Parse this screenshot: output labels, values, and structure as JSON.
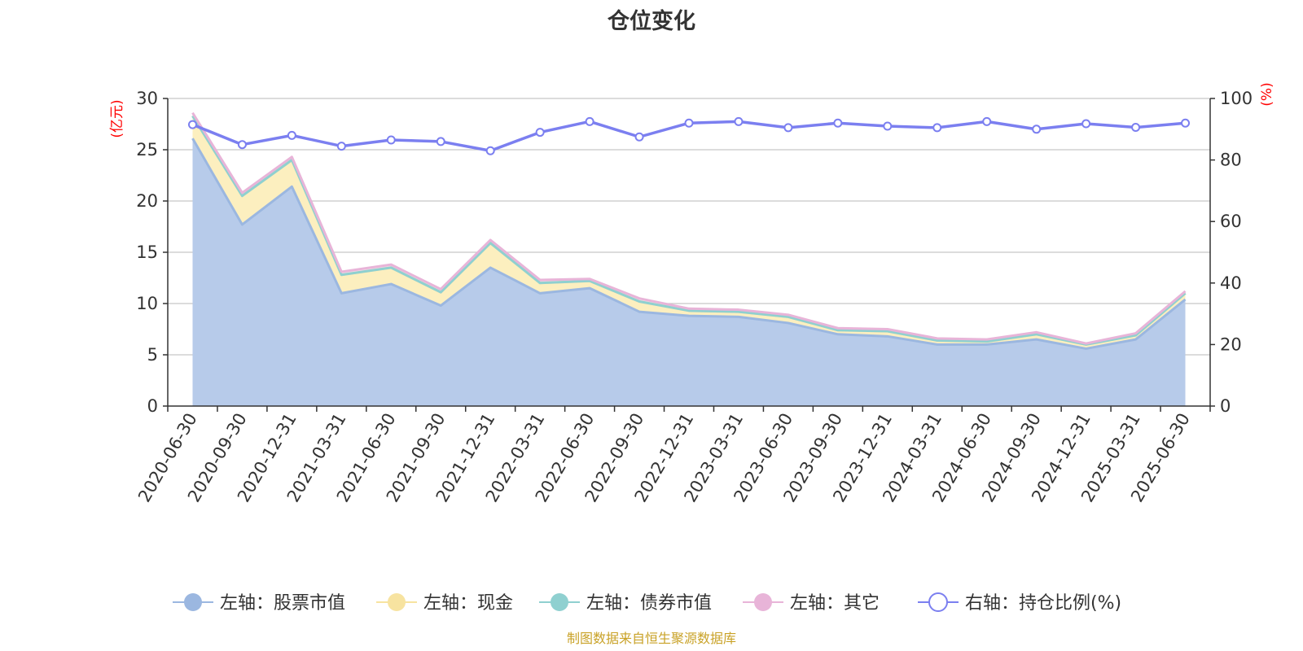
{
  "chart_data": {
    "type": "area",
    "title": "仓位变化",
    "x": [
      "2020-06-30",
      "2020-09-30",
      "2020-12-31",
      "2021-03-31",
      "2021-06-30",
      "2021-09-30",
      "2021-12-31",
      "2022-03-31",
      "2022-06-30",
      "2022-09-30",
      "2022-12-31",
      "2023-03-31",
      "2023-06-30",
      "2023-09-30",
      "2023-12-31",
      "2024-03-31",
      "2024-06-30",
      "2024-09-30",
      "2024-12-31",
      "2025-03-31",
      "2025-06-30"
    ],
    "left_axis": {
      "unit": "(亿元)",
      "ylim": [
        0,
        30
      ],
      "ticks": [
        0,
        5,
        10,
        15,
        20,
        25,
        30
      ]
    },
    "right_axis": {
      "unit": "(%)",
      "ylim": [
        0,
        100
      ],
      "ticks": [
        0,
        20,
        40,
        60,
        80,
        100
      ]
    },
    "series": [
      {
        "name": "左轴：股票市值",
        "axis": "left",
        "stack": true,
        "color": "#9bb7e0",
        "fill": "#b7cbea",
        "values": [
          26.1,
          17.7,
          21.4,
          11.0,
          11.9,
          9.8,
          13.5,
          11.0,
          11.5,
          9.2,
          8.8,
          8.7,
          8.1,
          7.0,
          6.8,
          6.0,
          6.0,
          6.5,
          5.6,
          6.5,
          10.4
        ]
      },
      {
        "name": "左轴：现金",
        "axis": "left",
        "stack": true,
        "color": "#f7e3a0",
        "fill": "#fcefbf",
        "values": [
          2.2,
          2.8,
          2.6,
          1.8,
          1.6,
          1.3,
          2.4,
          1.0,
          0.7,
          1.0,
          0.5,
          0.5,
          0.6,
          0.4,
          0.5,
          0.4,
          0.3,
          0.5,
          0.4,
          0.4,
          0.6
        ]
      },
      {
        "name": "左轴：债券市值",
        "axis": "left",
        "stack": true,
        "color": "#8fd0d0",
        "fill": "#b6e2e2",
        "values": [
          0,
          0,
          0,
          0,
          0,
          0,
          0,
          0,
          0,
          0,
          0,
          0,
          0,
          0,
          0,
          0,
          0,
          0,
          0,
          0,
          0
        ]
      },
      {
        "name": "左轴：其它",
        "axis": "left",
        "stack": true,
        "color": "#e8b4d8",
        "fill": "#f4d9ea",
        "values": [
          0.3,
          0.3,
          0.3,
          0.3,
          0.3,
          0.3,
          0.3,
          0.3,
          0.2,
          0.3,
          0.2,
          0.2,
          0.2,
          0.2,
          0.2,
          0.2,
          0.2,
          0.2,
          0.1,
          0.2,
          0.2
        ]
      },
      {
        "name": "右轴：持仓比例(%)",
        "axis": "right",
        "stack": false,
        "color": "#7b7ff0",
        "values": [
          91.5,
          85.0,
          88.0,
          84.5,
          86.5,
          86.0,
          83.0,
          89.0,
          92.5,
          87.5,
          92.0,
          92.5,
          90.5,
          92.0,
          91.0,
          90.5,
          92.5,
          90.0,
          91.8,
          90.6,
          92.0
        ]
      }
    ],
    "legend_position": "bottom",
    "grid": true
  },
  "footer": "制图数据来自恒生聚源数据库"
}
